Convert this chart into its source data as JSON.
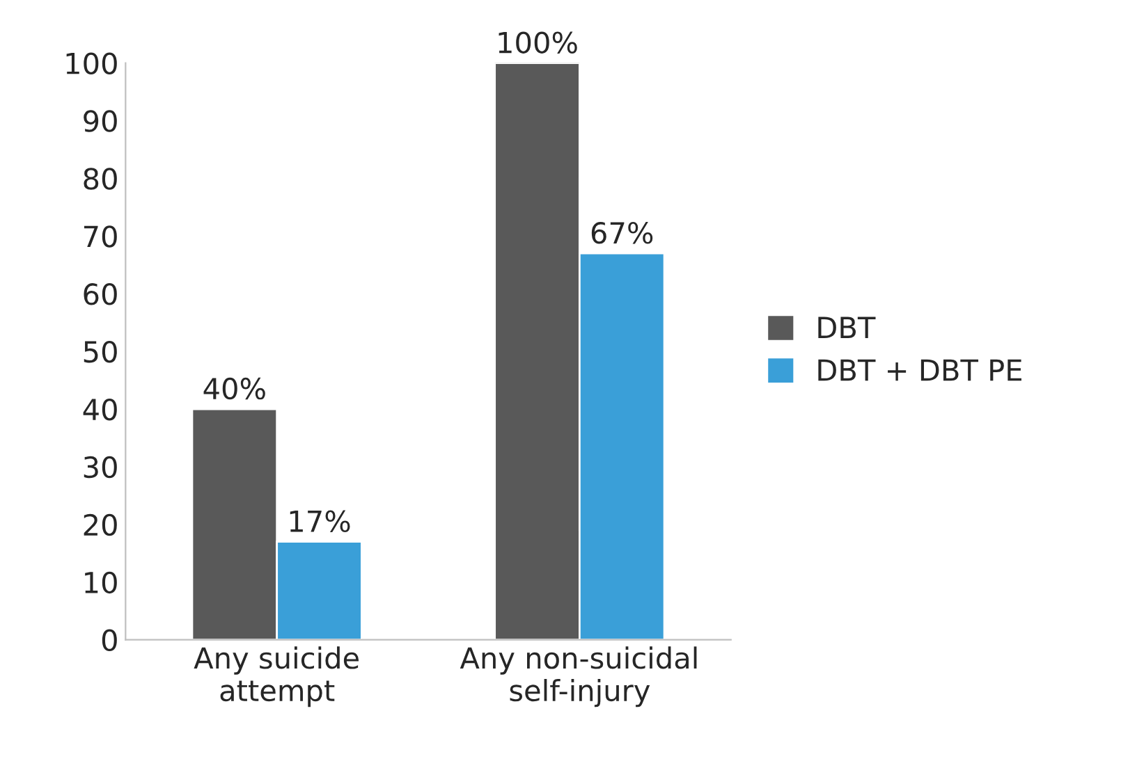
{
  "chart_data": {
    "type": "bar",
    "categories": [
      "Any suicide\nattempt",
      "Any non-suicidal\nself-injury"
    ],
    "series": [
      {
        "name": "DBT",
        "color": "#595959",
        "values": [
          40,
          100
        ],
        "value_labels": [
          "40%",
          "100%"
        ]
      },
      {
        "name": "DBT + DBT PE",
        "color": "#3a9fd8",
        "values": [
          17,
          67
        ],
        "value_labels": [
          "17%",
          "67%"
        ]
      }
    ],
    "ylim": [
      0,
      100
    ],
    "yticks": [
      0,
      10,
      20,
      30,
      40,
      50,
      60,
      70,
      80,
      90,
      100
    ],
    "grid": false,
    "legend": "right"
  }
}
